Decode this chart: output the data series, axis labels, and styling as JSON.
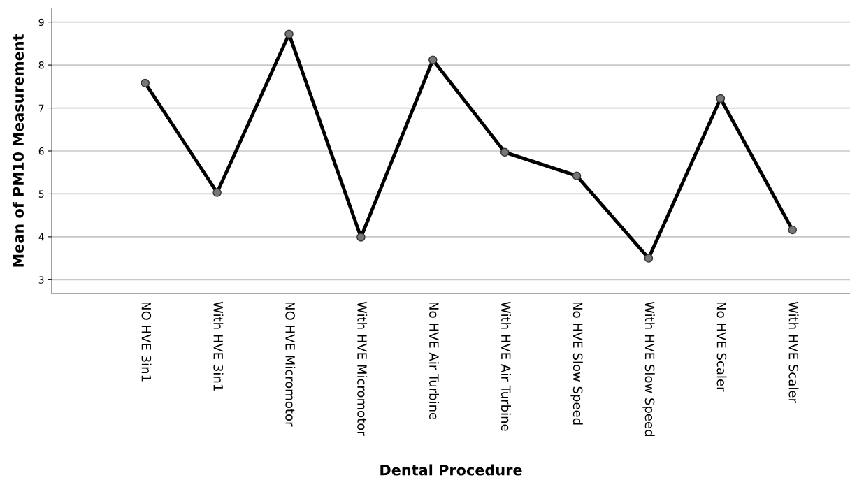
{
  "chart_data": {
    "type": "line",
    "xlabel": "Dental Procedure",
    "ylabel": "Mean of PM10 Measurement",
    "categories": [
      "NO HVE 3in1",
      "With HVE 3in1",
      "NO HVE Micromotor",
      "With HVE Micromotor",
      "No HVE Air Turbine",
      "With HVE Air Turbine",
      "No HVE Slow Speed",
      "With HVE Slow Speed",
      "No HVE Scaler",
      "With HVE Scaler"
    ],
    "series": [
      {
        "color": "#000000",
        "values": [
          7.58,
          5.03,
          8.72,
          3.99,
          8.12,
          5.97,
          5.42,
          3.5,
          7.22,
          4.16
        ]
      }
    ],
    "ylim": [
      2.68,
      9.32
    ],
    "yticks": [
      3,
      4,
      5,
      6,
      7,
      8,
      9
    ],
    "grid": "y",
    "marker": "circle",
    "line_style": "solid"
  }
}
